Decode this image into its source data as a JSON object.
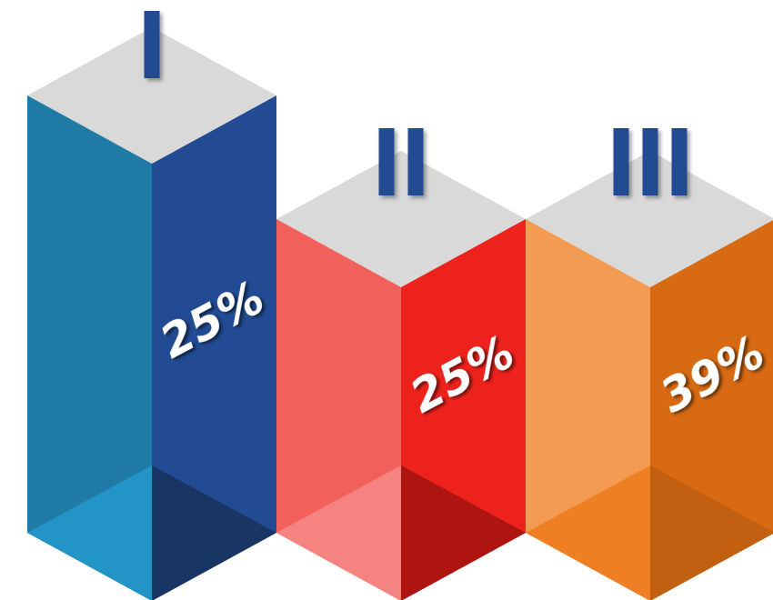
{
  "chart_data": {
    "type": "bar",
    "categories": [
      "I",
      "II",
      "III"
    ],
    "values": [
      25,
      25,
      39
    ],
    "value_labels": [
      "25%",
      "25%",
      "39%"
    ],
    "unit": "%",
    "colors": {
      "I": {
        "left": "#1f7aa6",
        "right": "#224b93",
        "bottom_left": "#2394c6",
        "bottom_right": "#183563"
      },
      "II": {
        "left": "#f2605b",
        "right": "#ee221c",
        "bottom_left": "#f5837f",
        "bottom_right": "#ae1410"
      },
      "III": {
        "left": "#f39b53",
        "right": "#d76a12",
        "bottom_left": "#ee7f22",
        "bottom_right": "#c35f11"
      },
      "top_face": "#d9d9d9",
      "numeral": "#224b93"
    },
    "xlabel": "",
    "ylabel": ""
  }
}
